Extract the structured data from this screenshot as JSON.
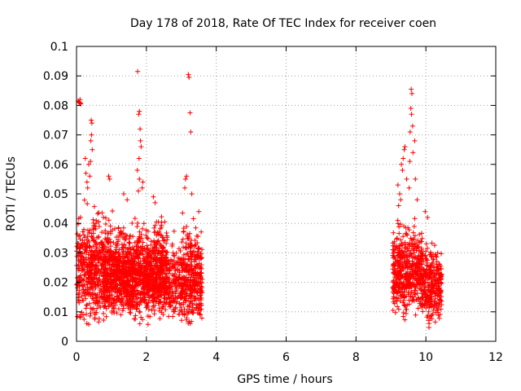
{
  "chart_data": {
    "type": "scatter",
    "title": "Day 178 of 2018, Rate Of TEC Index for receiver coen",
    "xlabel": "GPS time / hours",
    "ylabel": "ROTI / TECUs",
    "xlim": [
      0,
      12
    ],
    "ylim": [
      0,
      0.1
    ],
    "xticks": [
      "0",
      "2",
      "4",
      "6",
      "8",
      "10",
      "12"
    ],
    "yticks": [
      "0",
      "0.01",
      "0.02",
      "0.03",
      "0.04",
      "0.05",
      "0.06",
      "0.07",
      "0.08",
      "0.09",
      "0.1"
    ],
    "grid": true,
    "marker": "+",
    "color": "#ff0000",
    "series": [
      {
        "name": "ROTI",
        "clusters": [
          {
            "x_range": [
              0.0,
              0.75
            ],
            "y_range": [
              0.003,
              0.05
            ],
            "count": 420
          },
          {
            "x_range": [
              0.75,
              2.6
            ],
            "y_range": [
              0.005,
              0.045
            ],
            "count": 1500
          },
          {
            "x_range": [
              2.6,
              3.0
            ],
            "y_range": [
              0.005,
              0.038
            ],
            "count": 160
          },
          {
            "x_range": [
              3.0,
              3.6
            ],
            "y_range": [
              0.003,
              0.046
            ],
            "count": 360
          },
          {
            "x_range": [
              9.05,
              9.9
            ],
            "y_range": [
              0.006,
              0.044
            ],
            "count": 520
          },
          {
            "x_range": [
              9.9,
              10.45
            ],
            "y_range": [
              0.004,
              0.038
            ],
            "count": 300
          }
        ],
        "points": [
          [
            0.05,
            0.0815
          ],
          [
            0.08,
            0.081
          ],
          [
            0.1,
            0.082
          ],
          [
            0.12,
            0.0805
          ],
          [
            0.06,
            0.0812
          ],
          [
            0.11,
            0.0808
          ],
          [
            0.25,
            0.062
          ],
          [
            0.27,
            0.057
          ],
          [
            0.3,
            0.054
          ],
          [
            0.32,
            0.052
          ],
          [
            0.35,
            0.06
          ],
          [
            0.4,
            0.061
          ],
          [
            0.42,
            0.075
          ],
          [
            0.44,
            0.074
          ],
          [
            0.43,
            0.07
          ],
          [
            0.41,
            0.068
          ],
          [
            0.45,
            0.065
          ],
          [
            0.38,
            0.056
          ],
          [
            0.92,
            0.056
          ],
          [
            0.95,
            0.055
          ],
          [
            1.35,
            0.05
          ],
          [
            1.45,
            0.048
          ],
          [
            1.75,
            0.0915
          ],
          [
            1.8,
            0.078
          ],
          [
            1.78,
            0.077
          ],
          [
            1.82,
            0.072
          ],
          [
            1.83,
            0.068
          ],
          [
            1.85,
            0.066
          ],
          [
            1.79,
            0.062
          ],
          [
            1.74,
            0.058
          ],
          [
            1.8,
            0.055
          ],
          [
            1.9,
            0.054
          ],
          [
            1.88,
            0.052
          ],
          [
            1.77,
            0.051
          ],
          [
            2.2,
            0.049
          ],
          [
            2.25,
            0.047
          ],
          [
            3.2,
            0.0905
          ],
          [
            3.22,
            0.0895
          ],
          [
            3.25,
            0.0775
          ],
          [
            3.27,
            0.071
          ],
          [
            3.15,
            0.056
          ],
          [
            3.12,
            0.055
          ],
          [
            3.1,
            0.052
          ],
          [
            3.3,
            0.05
          ],
          [
            3.5,
            0.044
          ],
          [
            9.2,
            0.053
          ],
          [
            9.25,
            0.05
          ],
          [
            9.3,
            0.06
          ],
          [
            9.35,
            0.062
          ],
          [
            9.38,
            0.065
          ],
          [
            9.4,
            0.066
          ],
          [
            9.33,
            0.058
          ],
          [
            9.45,
            0.055
          ],
          [
            9.28,
            0.048
          ],
          [
            9.22,
            0.046
          ],
          [
            9.58,
            0.0855
          ],
          [
            9.6,
            0.084
          ],
          [
            9.57,
            0.079
          ],
          [
            9.59,
            0.077
          ],
          [
            9.62,
            0.073
          ],
          [
            9.55,
            0.071
          ],
          [
            9.68,
            0.068
          ],
          [
            9.63,
            0.064
          ],
          [
            9.54,
            0.061
          ],
          [
            9.7,
            0.055
          ],
          [
            9.52,
            0.052
          ],
          [
            9.75,
            0.048
          ],
          [
            9.98,
            0.044
          ],
          [
            10.05,
            0.042
          ]
        ]
      }
    ]
  }
}
